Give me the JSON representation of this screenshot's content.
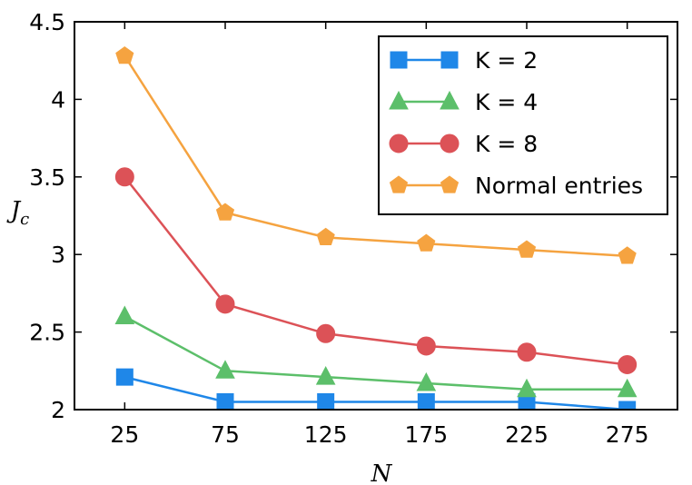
{
  "chart_data": {
    "type": "line",
    "title": "",
    "xlabel": "N",
    "ylabel": "J",
    "ylabel_subscript": "c",
    "x": [
      25,
      75,
      125,
      175,
      225,
      275
    ],
    "x_tick_labels": [
      "25",
      "75",
      "125",
      "175",
      "225",
      "275"
    ],
    "xlim": [
      0,
      300
    ],
    "ylim": [
      2,
      4.5
    ],
    "y_ticks": [
      2,
      2.5,
      3,
      3.5,
      4,
      4.5
    ],
    "y_tick_labels": [
      "2",
      "2.5",
      "3",
      "3.5",
      "4",
      "4.5"
    ],
    "grid": false,
    "legend_position": "top-right",
    "series": [
      {
        "name": "K = 2",
        "marker": "square",
        "color": "#1f87e8",
        "values": [
          2.21,
          2.05,
          2.05,
          2.05,
          2.05,
          2.0
        ]
      },
      {
        "name": "K = 4",
        "marker": "triangle",
        "color": "#5cbf6a",
        "values": [
          2.6,
          2.25,
          2.21,
          2.17,
          2.13,
          2.13
        ]
      },
      {
        "name": "K = 8",
        "marker": "circle",
        "color": "#dc5257",
        "values": [
          3.5,
          2.68,
          2.49,
          2.41,
          2.37,
          2.29
        ]
      },
      {
        "name": "Normal entries",
        "marker": "pentagon",
        "color": "#f5a340",
        "values": [
          4.28,
          3.27,
          3.11,
          3.07,
          3.03,
          2.99
        ]
      }
    ]
  }
}
